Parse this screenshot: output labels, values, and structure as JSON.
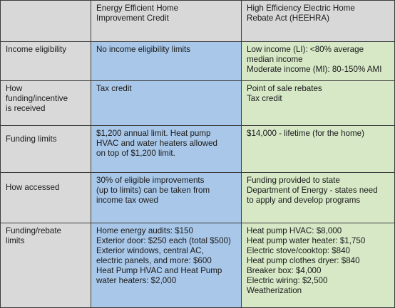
{
  "header": {
    "col1": "",
    "col2": "Energy Efficient Home\nImprovement Credit",
    "col3": "High Efficiency Electric Home\nRebate Act (HEEHRA)"
  },
  "rows": [
    {
      "label": "Income eligibility",
      "credit": "No income eligibility limits",
      "heehra": "Low income (LI): <80% average\nmedian income\nModerate income (MI): 80-150% AMI"
    },
    {
      "label": "How\nfunding/incentive\nis received",
      "credit": "Tax credit",
      "heehra": "Point of sale rebates\nTax credit"
    },
    {
      "label": "Funding limits",
      "credit": "$1,200 annual limit. Heat pump\nHVAC and water heaters allowed\non top of $1,200 limit.",
      "heehra": "$14,000 - lifetime (for the home)"
    },
    {
      "label": "How accessed",
      "credit": "30% of eligible improvements\n(up to limits) can be taken from\nincome tax owed",
      "heehra": "Funding provided to state\nDepartment of Energy - states need\nto apply and develop programs"
    },
    {
      "label": "Funding/rebate\nlimits",
      "credit": "Home energy audits: $150\nExterior door: $250 each (total $500)\nExterior windows, central AC,\nelectric panels, and more: $600\nHeat Pump HVAC and Heat Pump\nwater heaters: $2,000",
      "heehra": "Heat pump HVAC: $8,000\nHeat pump water heater: $1,750\nElectric stove/cooktop: $840\nHeat pump clothes dryer: $840\nBreaker box: $4,000\nElectric wiring: $2,500\nWeatherization"
    }
  ],
  "colors": {
    "header_bg": "#d8d8d8",
    "credit_bg": "#a9c7e8",
    "heehra_bg": "#d6e8c6",
    "border": "#3c3c3c"
  }
}
